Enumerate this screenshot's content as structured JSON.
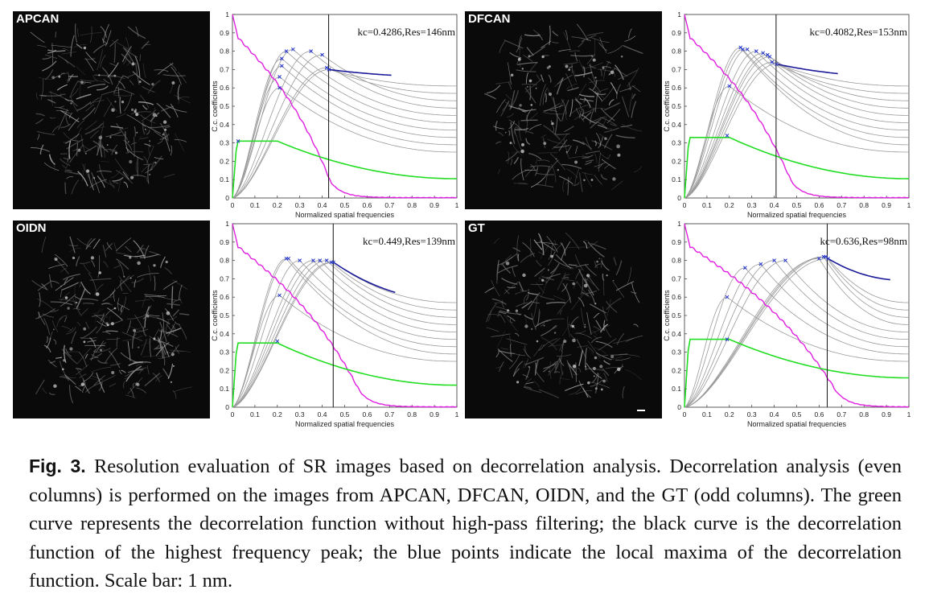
{
  "panels": [
    {
      "label": "APCAN",
      "kc": 0.4286,
      "annotation": "kc=0.4286,Res=146nm",
      "green_plateau": 0.31,
      "green_end": 0.105,
      "magenta_cross": 0.44,
      "blue_tail_end": 0.66,
      "peaks": [
        [
          0.025,
          0.31
        ],
        [
          0.21,
          0.6
        ],
        [
          0.21,
          0.66
        ],
        [
          0.22,
          0.72
        ],
        [
          0.22,
          0.76
        ],
        [
          0.24,
          0.8
        ],
        [
          0.27,
          0.81
        ],
        [
          0.35,
          0.8
        ],
        [
          0.4,
          0.78
        ],
        [
          0.42,
          0.71
        ],
        [
          0.43,
          0.7
        ]
      ]
    },
    {
      "label": "DFCAN",
      "kc": 0.4082,
      "annotation": "kc=0.4082,Res=153nm",
      "green_plateau": 0.33,
      "green_end": 0.105,
      "magenta_cross": 0.48,
      "blue_tail_end": 0.66,
      "peaks": [
        [
          0.19,
          0.34
        ],
        [
          0.2,
          0.61
        ],
        [
          0.25,
          0.82
        ],
        [
          0.26,
          0.81
        ],
        [
          0.28,
          0.81
        ],
        [
          0.32,
          0.8
        ],
        [
          0.35,
          0.79
        ],
        [
          0.37,
          0.78
        ],
        [
          0.38,
          0.77
        ],
        [
          0.39,
          0.74
        ],
        [
          0.41,
          0.73
        ]
      ]
    },
    {
      "label": "OIDN",
      "kc": 0.449,
      "annotation": "kc=0.449,Res=139nm",
      "green_plateau": 0.35,
      "green_end": 0.12,
      "magenta_cross": 0.57,
      "blue_tail_end": 0.58,
      "peaks": [
        [
          0.2,
          0.36
        ],
        [
          0.21,
          0.61
        ],
        [
          0.24,
          0.81
        ],
        [
          0.25,
          0.81
        ],
        [
          0.3,
          0.8
        ],
        [
          0.36,
          0.8
        ],
        [
          0.39,
          0.8
        ],
        [
          0.42,
          0.8
        ],
        [
          0.44,
          0.79
        ],
        [
          0.45,
          0.79
        ]
      ]
    },
    {
      "label": "GT",
      "kc": 0.636,
      "annotation": "kc=0.636,Res=98nm",
      "green_plateau": 0.37,
      "green_end": 0.16,
      "magenta_cross": 0.68,
      "blue_tail_end": 0.69,
      "peaks": [
        [
          0.19,
          0.37
        ],
        [
          0.19,
          0.6
        ],
        [
          0.27,
          0.76
        ],
        [
          0.34,
          0.78
        ],
        [
          0.4,
          0.8
        ],
        [
          0.45,
          0.8
        ],
        [
          0.6,
          0.81
        ],
        [
          0.62,
          0.82
        ],
        [
          0.63,
          0.82
        ],
        [
          0.64,
          0.81
        ]
      ]
    }
  ],
  "axes": {
    "ylabel": "C.c. coefficients",
    "xlabel": "Normalized spatial frequencies",
    "xticks": [
      "0",
      "0.1",
      "0.2",
      "0.3",
      "0.4",
      "0.5",
      "0.6",
      "0.7",
      "0.8",
      "0.9",
      "1"
    ],
    "yticks": [
      "0",
      "0.1",
      "0.2",
      "0.3",
      "0.4",
      "0.5",
      "0.6",
      "0.7",
      "0.8",
      "0.9",
      "1"
    ]
  },
  "caption": {
    "fig_label": "Fig. 3.",
    "text": "Resolution evaluation of SR images based on decorrelation analysis. Decorrelation analysis (even columns) is performed on the images from APCAN, DFCAN, OIDN, and the GT (odd columns). The green curve represents the decorrelation function without high-pass filtering; the black curve is the decorrelation function of the highest frequency peak; the blue points indicate the local maxima of the decorrelation function. Scale bar: 1 nm."
  },
  "colors": {
    "green": "#22dd22",
    "magenta": "#e020e0",
    "blue": "#1a1a9a",
    "gray": "#9a9a9a",
    "black": "#111111"
  }
}
